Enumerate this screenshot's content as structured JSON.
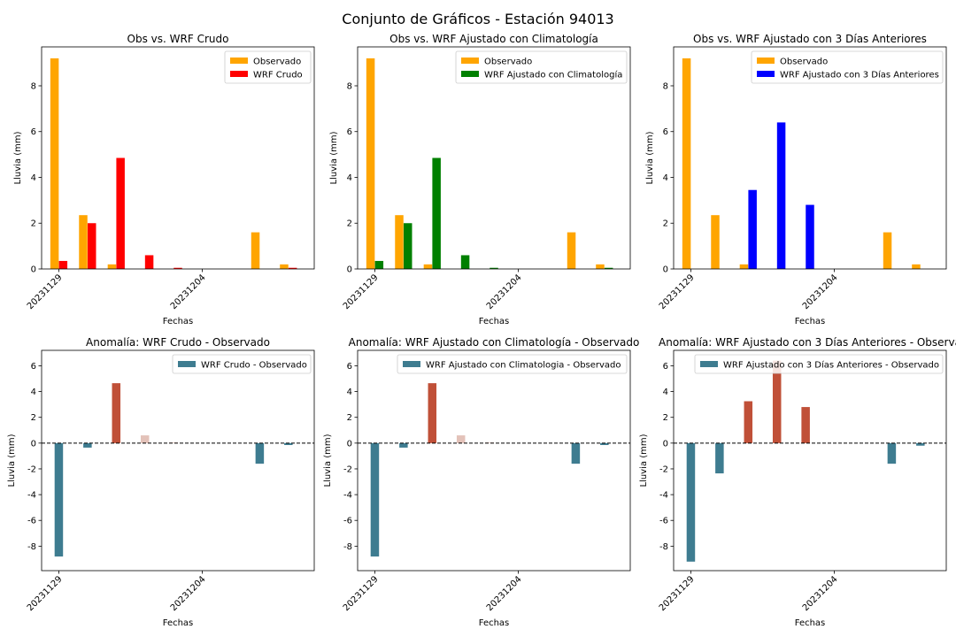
{
  "figure_title": "Conjunto de Gráficos - Estación 94013",
  "colors": {
    "observado": "#FFA500",
    "wrf_crudo": "#FF0000",
    "wrf_clim": "#008000",
    "wrf_3dias": "#0000FF",
    "anomaly_negative": "#3E7C90",
    "anomaly_positive": "#C05038",
    "anomaly_small_positive": "#E3C2B9"
  },
  "chart_data": [
    {
      "type": "bar",
      "title": "Obs vs. WRF Crudo",
      "xlabel": "Fechas",
      "ylabel": "Lluvia (mm)",
      "x_tick_labels": [
        "20231129",
        "20231204"
      ],
      "x_tick_days": [
        0,
        5
      ],
      "xlim_days": [
        -0.6,
        8.9
      ],
      "ylim": [
        0,
        9.7
      ],
      "y_ticks": [
        0,
        2,
        4,
        6,
        8
      ],
      "legend_position": "upper right",
      "series": [
        {
          "name": "Observado",
          "color_key": "observado",
          "values": [
            9.2,
            2.35,
            0.2,
            0,
            0,
            0,
            0,
            1.6,
            0.2
          ],
          "offset": -0.15
        },
        {
          "name": "WRF Crudo",
          "color_key": "wrf_crudo",
          "values": [
            0.35,
            2.0,
            4.85,
            0.6,
            0.05,
            0,
            0,
            0,
            0.05
          ],
          "offset": 0.15
        }
      ],
      "days": [
        0,
        1,
        2,
        3,
        4,
        5,
        6,
        7,
        8
      ]
    },
    {
      "type": "bar",
      "title": "Obs vs. WRF Ajustado con Climatología",
      "xlabel": "Fechas",
      "ylabel": "Lluvia (mm)",
      "x_tick_labels": [
        "20231129",
        "20231204"
      ],
      "x_tick_days": [
        0,
        5
      ],
      "xlim_days": [
        -0.6,
        8.9
      ],
      "ylim": [
        0,
        9.7
      ],
      "y_ticks": [
        0,
        2,
        4,
        6,
        8
      ],
      "legend_position": "upper right",
      "series": [
        {
          "name": "Observado",
          "color_key": "observado",
          "values": [
            9.2,
            2.35,
            0.2,
            0,
            0,
            0,
            0,
            1.6,
            0.2
          ],
          "offset": -0.15
        },
        {
          "name": "WRF Ajustado con Climatología",
          "color_key": "wrf_clim",
          "values": [
            0.35,
            2.0,
            4.85,
            0.6,
            0.05,
            0,
            0,
            0,
            0.05
          ],
          "offset": 0.15
        }
      ],
      "days": [
        0,
        1,
        2,
        3,
        4,
        5,
        6,
        7,
        8
      ]
    },
    {
      "type": "bar",
      "title": "Obs vs. WRF Ajustado con 3 Días Anteriores",
      "xlabel": "Fechas",
      "ylabel": "Lluvia (mm)",
      "x_tick_labels": [
        "20231129",
        "20231204"
      ],
      "x_tick_days": [
        0,
        5
      ],
      "xlim_days": [
        -0.6,
        8.9
      ],
      "ylim": [
        0,
        9.7
      ],
      "y_ticks": [
        0,
        2,
        4,
        6,
        8
      ],
      "legend_position": "upper right",
      "series": [
        {
          "name": "Observado",
          "color_key": "observado",
          "values": [
            9.2,
            2.35,
            0.2,
            0,
            0,
            0,
            0,
            1.6,
            0.2
          ],
          "offset": -0.15
        },
        {
          "name": "WRF Ajustado con 3 Días Anteriores",
          "color_key": "wrf_3dias",
          "values": [
            0,
            0,
            3.45,
            6.4,
            2.8,
            0,
            0,
            0,
            0
          ],
          "offset": 0.15
        }
      ],
      "days": [
        0,
        1,
        2,
        3,
        4,
        5,
        6,
        7,
        8
      ]
    },
    {
      "type": "bar",
      "title": "Anomalía: WRF Crudo - Observado",
      "xlabel": "Fechas",
      "ylabel": "Lluvia (mm)",
      "x_tick_labels": [
        "20231129",
        "20231204"
      ],
      "x_tick_days": [
        0,
        5
      ],
      "xlim_days": [
        -0.6,
        8.9
      ],
      "ylim": [
        -9.9,
        7.2
      ],
      "y_ticks": [
        -8,
        -6,
        -4,
        -2,
        0,
        2,
        4,
        6
      ],
      "legend_position": "upper right",
      "zero_line": "dashed",
      "series": [
        {
          "name": "WRF Crudo - Observado",
          "color_key": "anomaly_negative",
          "values": [
            -8.8,
            -0.35,
            4.65,
            0.6,
            0.05,
            0,
            0,
            -1.6,
            -0.15
          ],
          "offset": 0
        }
      ],
      "days": [
        0,
        1,
        2,
        3,
        4,
        5,
        6,
        7,
        8
      ]
    },
    {
      "type": "bar",
      "title": "Anomalía: WRF Ajustado con Climatología - Observado",
      "xlabel": "Fechas",
      "ylabel": "Lluvia (mm)",
      "x_tick_labels": [
        "20231129",
        "20231204"
      ],
      "x_tick_days": [
        0,
        5
      ],
      "xlim_days": [
        -0.6,
        8.9
      ],
      "ylim": [
        -9.9,
        7.2
      ],
      "y_ticks": [
        -8,
        -6,
        -4,
        -2,
        0,
        2,
        4,
        6
      ],
      "legend_position": "upper right",
      "zero_line": "dashed",
      "series": [
        {
          "name": "WRF Ajustado con Climatologia - Observado",
          "color_key": "anomaly_negative",
          "values": [
            -8.8,
            -0.35,
            4.65,
            0.6,
            0.05,
            0,
            0,
            -1.6,
            -0.15
          ],
          "offset": 0
        }
      ],
      "days": [
        0,
        1,
        2,
        3,
        4,
        5,
        6,
        7,
        8
      ]
    },
    {
      "type": "bar",
      "title": "Anomalía: WRF Ajustado con 3 Días Anteriores - Observa",
      "xlabel": "Fechas",
      "ylabel": "Lluvia (mm)",
      "x_tick_labels": [
        "20231129",
        "20231204"
      ],
      "x_tick_days": [
        0,
        5
      ],
      "xlim_days": [
        -0.6,
        8.9
      ],
      "ylim": [
        -9.9,
        7.2
      ],
      "y_ticks": [
        -8,
        -6,
        -4,
        -2,
        0,
        2,
        4,
        6
      ],
      "legend_position": "upper right",
      "zero_line": "dashed",
      "series": [
        {
          "name": "WRF Ajustado con 3 Días Anteriores - Observado",
          "color_key": "anomaly_negative",
          "values": [
            -9.2,
            -2.35,
            3.25,
            6.4,
            2.8,
            0,
            0,
            -1.6,
            -0.2
          ],
          "offset": 0
        }
      ],
      "days": [
        0,
        1,
        2,
        3,
        4,
        5,
        6,
        7,
        8
      ]
    }
  ]
}
